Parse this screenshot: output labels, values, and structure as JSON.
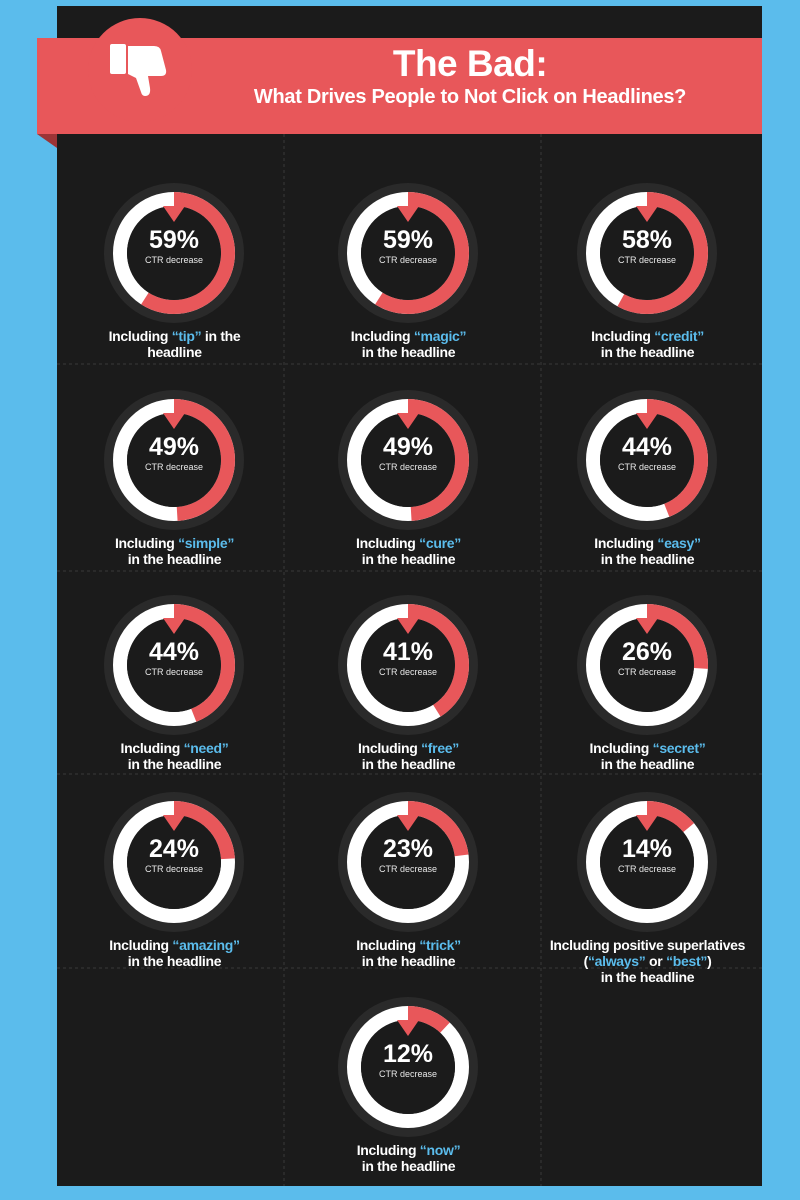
{
  "header": {
    "title": "The Bad:",
    "subtitle": "What Drives People to Not Click on Headlines?",
    "icon": "thumbs-down-icon"
  },
  "colors": {
    "background": "#5bbcec",
    "panel": "#1b1b1b",
    "accent": "#e8575a",
    "ring_track": "#ffffff",
    "keyword": "#5bbcec"
  },
  "chart_data": {
    "type": "donut",
    "unit": "%",
    "metric_label": "CTR decrease",
    "items": [
      {
        "value": 59,
        "pct_label": "59%",
        "before": "Including ",
        "keyword": "“tip”",
        "after": " in the headline",
        "lines": [
          "Including “tip” in the",
          "headline"
        ]
      },
      {
        "value": 59,
        "pct_label": "59%",
        "lines": [
          "Including “magic”",
          "in the headline"
        ]
      },
      {
        "value": 58,
        "pct_label": "58%",
        "lines": [
          "Including “credit”",
          "in the headline"
        ]
      },
      {
        "value": 49,
        "pct_label": "49%",
        "lines": [
          "Including “simple”",
          "in the headline"
        ]
      },
      {
        "value": 49,
        "pct_label": "49%",
        "lines": [
          "Including “cure”",
          "in the headline"
        ]
      },
      {
        "value": 44,
        "pct_label": "44%",
        "lines": [
          "Including “easy”",
          "in the headline"
        ]
      },
      {
        "value": 44,
        "pct_label": "44%",
        "lines": [
          "Including “need”",
          "in the headline"
        ]
      },
      {
        "value": 41,
        "pct_label": "41%",
        "lines": [
          "Including “free”",
          "in the headline"
        ]
      },
      {
        "value": 26,
        "pct_label": "26%",
        "lines": [
          "Including “secret”",
          "in the headline"
        ]
      },
      {
        "value": 24,
        "pct_label": "24%",
        "lines": [
          "Including “amazing”",
          "in the headline"
        ]
      },
      {
        "value": 23,
        "pct_label": "23%",
        "lines": [
          "Including “trick”",
          "in the headline"
        ]
      },
      {
        "value": 14,
        "pct_label": "14%",
        "lines": [
          "Including positive superlatives",
          "(“always” or “best”)",
          "in the headline"
        ]
      },
      {
        "value": 12,
        "pct_label": "12%",
        "lines": [
          "Including “now”",
          "in the headline"
        ]
      }
    ]
  }
}
